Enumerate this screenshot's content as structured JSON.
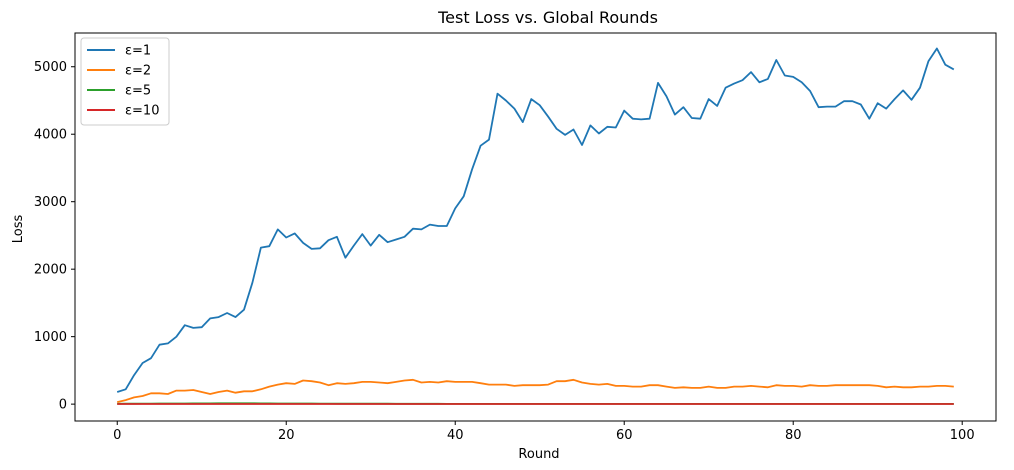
{
  "chart_data": {
    "type": "line",
    "title": "Test Loss vs. Global Rounds",
    "xlabel": "Round",
    "ylabel": "Loss",
    "xlim": [
      -5,
      104
    ],
    "ylim": [
      -250,
      5500
    ],
    "xticks": [
      0,
      20,
      40,
      60,
      80,
      100
    ],
    "yticks": [
      0,
      1000,
      2000,
      3000,
      4000,
      5000
    ],
    "grid": false,
    "legend_position": "top-left",
    "x": [
      0,
      1,
      2,
      3,
      4,
      5,
      6,
      7,
      8,
      9,
      10,
      11,
      12,
      13,
      14,
      15,
      16,
      17,
      18,
      19,
      20,
      21,
      22,
      23,
      24,
      25,
      26,
      27,
      28,
      29,
      30,
      31,
      32,
      33,
      34,
      35,
      36,
      37,
      38,
      39,
      40,
      41,
      42,
      43,
      44,
      45,
      46,
      47,
      48,
      49,
      50,
      51,
      52,
      53,
      54,
      55,
      56,
      57,
      58,
      59,
      60,
      61,
      62,
      63,
      64,
      65,
      66,
      67,
      68,
      69,
      70,
      71,
      72,
      73,
      74,
      75,
      76,
      77,
      78,
      79,
      80,
      81,
      82,
      83,
      84,
      85,
      86,
      87,
      88,
      89,
      90,
      91,
      92,
      93,
      94,
      95,
      96,
      97,
      98,
      99
    ],
    "series": [
      {
        "name": "ε=1",
        "color": "#1f77b4",
        "values": [
          180,
          220,
          430,
          610,
          680,
          880,
          900,
          1000,
          1170,
          1130,
          1140,
          1270,
          1290,
          1350,
          1290,
          1400,
          1800,
          2320,
          2340,
          2590,
          2470,
          2530,
          2390,
          2300,
          2310,
          2430,
          2480,
          2170,
          2350,
          2520,
          2350,
          2510,
          2400,
          2440,
          2480,
          2600,
          2590,
          2660,
          2640,
          2640,
          2900,
          3080,
          3480,
          3830,
          3920,
          4600,
          4500,
          4380,
          4180,
          4520,
          4430,
          4260,
          4080,
          3990,
          4070,
          3840,
          4130,
          4010,
          4110,
          4100,
          4350,
          4230,
          4220,
          4230,
          4760,
          4560,
          4290,
          4400,
          4240,
          4230,
          4520,
          4420,
          4690,
          4750,
          4800,
          4920,
          4770,
          4820,
          5100,
          4870,
          4850,
          4770,
          4640,
          4400,
          4410,
          4410,
          4490,
          4490,
          4440,
          4230,
          4460,
          4380,
          4520,
          4650,
          4510,
          4690,
          5080,
          5270,
          5030,
          4960
        ]
      },
      {
        "name": "ε=2",
        "color": "#ff7f0e",
        "values": [
          30,
          60,
          100,
          120,
          160,
          160,
          150,
          200,
          200,
          210,
          180,
          150,
          180,
          200,
          170,
          190,
          190,
          220,
          260,
          290,
          310,
          300,
          350,
          340,
          320,
          280,
          310,
          300,
          310,
          330,
          330,
          320,
          310,
          330,
          350,
          360,
          320,
          330,
          320,
          340,
          330,
          330,
          330,
          310,
          290,
          290,
          290,
          270,
          280,
          280,
          280,
          290,
          340,
          340,
          360,
          320,
          300,
          290,
          300,
          270,
          270,
          260,
          260,
          280,
          280,
          260,
          240,
          250,
          240,
          240,
          260,
          240,
          240,
          260,
          260,
          270,
          260,
          250,
          280,
          270,
          270,
          260,
          280,
          270,
          270,
          280,
          280,
          280,
          280,
          280,
          270,
          250,
          260,
          250,
          250,
          260,
          260,
          270,
          270,
          260
        ]
      },
      {
        "name": "ε=5",
        "color": "#2ca02c",
        "values": [
          5,
          6,
          7,
          8,
          8,
          9,
          9,
          10,
          10,
          11,
          11,
          11,
          12,
          12,
          12,
          12,
          12,
          11,
          11,
          10,
          10,
          10,
          9,
          9,
          8,
          8,
          7,
          7,
          7,
          6,
          6,
          6,
          6,
          5,
          5,
          5,
          5,
          5,
          5,
          4,
          4,
          4,
          4,
          4,
          4,
          4,
          4,
          4,
          3,
          3,
          3,
          3,
          3,
          3,
          3,
          3,
          3,
          3,
          3,
          3,
          3,
          3,
          3,
          3,
          3,
          3,
          3,
          3,
          3,
          3,
          3,
          3,
          3,
          3,
          3,
          3,
          3,
          3,
          3,
          3,
          3,
          3,
          3,
          3,
          3,
          3,
          3,
          3,
          3,
          3,
          3,
          3,
          3,
          3,
          3,
          3,
          3,
          3,
          3,
          3
        ]
      },
      {
        "name": "ε=10",
        "color": "#d62728",
        "values": [
          2,
          2,
          2,
          2,
          2,
          2,
          2,
          2,
          2,
          2,
          2,
          2,
          2,
          2,
          2,
          2,
          2,
          2,
          2,
          2,
          2,
          2,
          2,
          2,
          2,
          2,
          2,
          2,
          2,
          2,
          2,
          2,
          2,
          2,
          2,
          2,
          2,
          2,
          2,
          2,
          2,
          2,
          2,
          2,
          2,
          2,
          2,
          2,
          2,
          2,
          2,
          2,
          2,
          2,
          2,
          2,
          2,
          2,
          2,
          2,
          2,
          2,
          2,
          2,
          2,
          2,
          2,
          2,
          2,
          2,
          2,
          2,
          2,
          2,
          2,
          2,
          2,
          2,
          2,
          2,
          2,
          2,
          2,
          2,
          2,
          2,
          2,
          2,
          2,
          2,
          2,
          2,
          2,
          2,
          2,
          2,
          2,
          2,
          2,
          2
        ]
      }
    ]
  }
}
